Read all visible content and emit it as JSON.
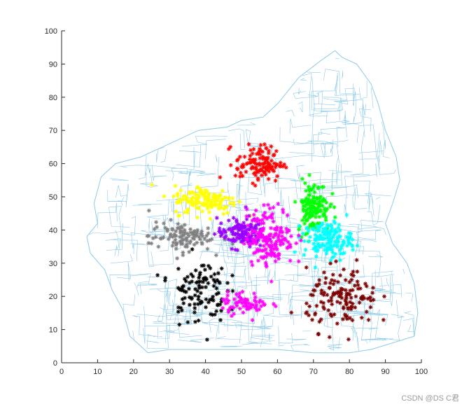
{
  "chart_data": {
    "type": "scatter",
    "title": "",
    "xlabel": "",
    "ylabel": "",
    "xlim": [
      0,
      100
    ],
    "ylim": [
      0,
      100
    ],
    "xticks": [
      0,
      10,
      20,
      30,
      40,
      50,
      60,
      70,
      80,
      90,
      100
    ],
    "yticks": [
      0,
      10,
      20,
      30,
      40,
      50,
      60,
      70,
      80,
      90,
      100
    ],
    "grid": false,
    "marker": "*",
    "background_map_color": "#8ecae6",
    "clusters": [
      {
        "color": "#ff0000",
        "center": [
          55,
          60
        ],
        "spread": [
          6,
          5
        ],
        "count": 120
      },
      {
        "color": "#ffff00",
        "center": [
          40,
          49
        ],
        "spread": [
          8,
          4
        ],
        "count": 140
      },
      {
        "color": "#00ff00",
        "center": [
          70,
          47
        ],
        "spread": [
          4,
          7
        ],
        "count": 140
      },
      {
        "color": "#00ffff",
        "center": [
          74,
          37
        ],
        "spread": [
          6,
          5
        ],
        "count": 150
      },
      {
        "color": "#808080",
        "center": [
          33,
          38
        ],
        "spread": [
          8,
          4
        ],
        "count": 110
      },
      {
        "color": "#9900ff",
        "center": [
          50,
          39
        ],
        "spread": [
          6,
          4
        ],
        "count": 130
      },
      {
        "color": "#ff00ff",
        "center": [
          58,
          38
        ],
        "spread": [
          6,
          8
        ],
        "count": 170
      },
      {
        "color": "#000000",
        "center": [
          38,
          22
        ],
        "spread": [
          7,
          9
        ],
        "count": 110
      },
      {
        "color": "#ff00ff",
        "center": [
          51,
          18
        ],
        "spread": [
          6,
          3
        ],
        "count": 70
      },
      {
        "color": "#7a0000",
        "center": [
          78,
          19
        ],
        "spread": [
          9,
          8
        ],
        "count": 140
      }
    ]
  },
  "watermark": "CSDN @DS C君"
}
